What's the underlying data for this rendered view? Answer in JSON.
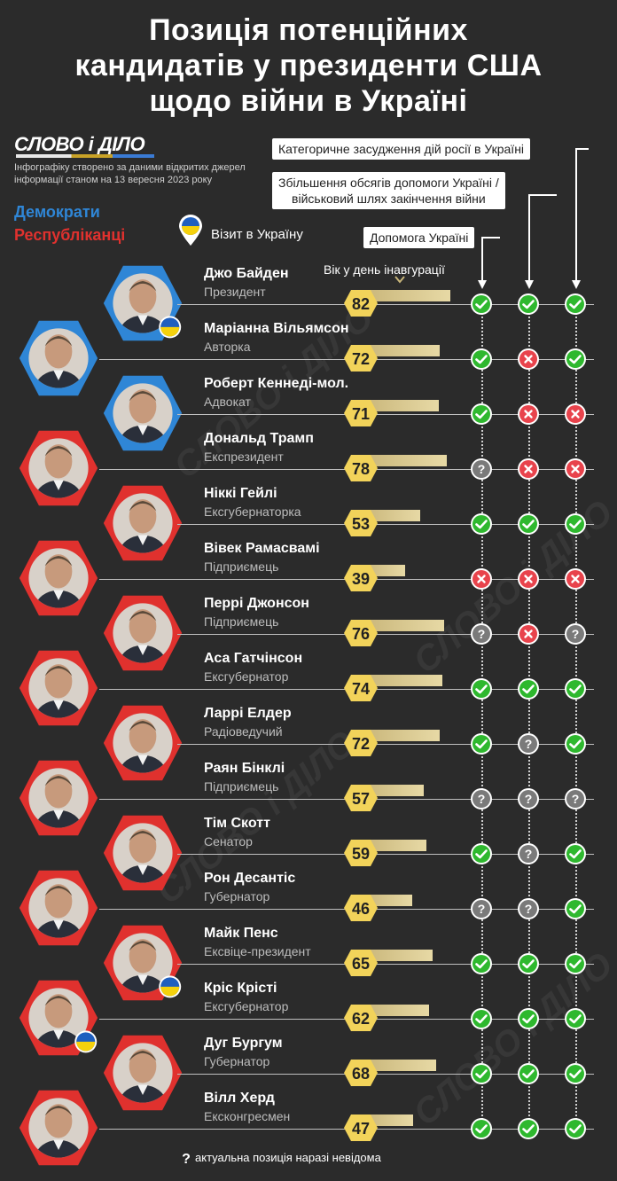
{
  "title_lines": [
    "Позиція потенційних",
    "кандидатів у президенти США",
    "щодо війни в Україні"
  ],
  "logo_text": "СЛОВО і ДІЛО",
  "source_lines": [
    "Інфографіку створено за даними відкритих джерел",
    "інформації станом на 13 вересня 2023 року"
  ],
  "legend": {
    "democrats": "Демократи",
    "republicans": "Республіканці",
    "visit": "Візит в Україну"
  },
  "colors": {
    "democrat": "#2f86d6",
    "republican": "#e0312e",
    "age_hex": "#f2d35a",
    "yes": "#2eb82e",
    "no": "#e8434c",
    "unknown": "#7a7a7a"
  },
  "categories": {
    "condemn": "Категоричне засудження дій росії в Україні",
    "increase_line1": "Збільшення обсягів допомоги Україні /",
    "increase_line2": "військовий шлях закінчення війни",
    "aid": "Допомога Україні"
  },
  "age_header": "Вік у день інавгурації",
  "footnote": "актуальна позиція наразі невідома",
  "chart_data": {
    "type": "table",
    "columns": [
      "Допомога Україні",
      "Збільшення обсягів допомоги Україні / військовий шлях закінчення війни",
      "Категоричне засудження дій росії в Україні"
    ],
    "rows": [
      {
        "name": "Джо Байден",
        "role": "Президент",
        "party": "democrat",
        "age": 82,
        "visit": true,
        "aid": "yes",
        "increase": "yes",
        "condemn": "yes"
      },
      {
        "name": "Маріанна Вільямсон",
        "role": "Авторка",
        "party": "democrat",
        "age": 72,
        "visit": false,
        "aid": "yes",
        "increase": "no",
        "condemn": "yes"
      },
      {
        "name": "Роберт Кеннеді-мол.",
        "role": "Адвокат",
        "party": "democrat",
        "age": 71,
        "visit": false,
        "aid": "yes",
        "increase": "no",
        "condemn": "no"
      },
      {
        "name": "Дональд Трамп",
        "role": "Експрезидент",
        "party": "republican",
        "age": 78,
        "visit": false,
        "aid": "unknown",
        "increase": "no",
        "condemn": "no"
      },
      {
        "name": "Ніккі Гейлі",
        "role": "Ексгубернаторка",
        "party": "republican",
        "age": 53,
        "visit": false,
        "aid": "yes",
        "increase": "yes",
        "condemn": "yes"
      },
      {
        "name": "Вівек Рамасвамі",
        "role": "Підприємець",
        "party": "republican",
        "age": 39,
        "visit": false,
        "aid": "no",
        "increase": "no",
        "condemn": "no"
      },
      {
        "name": "Перрі Джонсон",
        "role": "Підприємець",
        "party": "republican",
        "age": 76,
        "visit": false,
        "aid": "unknown",
        "increase": "no",
        "condemn": "unknown"
      },
      {
        "name": "Аса Гатчінсон",
        "role": "Ексгубернатор",
        "party": "republican",
        "age": 74,
        "visit": false,
        "aid": "yes",
        "increase": "yes",
        "condemn": "yes"
      },
      {
        "name": "Ларрі Елдер",
        "role": "Радіоведучий",
        "party": "republican",
        "age": 72,
        "visit": false,
        "aid": "yes",
        "increase": "unknown",
        "condemn": "yes"
      },
      {
        "name": "Раян Бінклі",
        "role": "Підприємець",
        "party": "republican",
        "age": 57,
        "visit": false,
        "aid": "unknown",
        "increase": "unknown",
        "condemn": "unknown"
      },
      {
        "name": "Тім Скотт",
        "role": "Сенатор",
        "party": "republican",
        "age": 59,
        "visit": false,
        "aid": "yes",
        "increase": "unknown",
        "condemn": "yes"
      },
      {
        "name": "Рон Десантіс",
        "role": "Губернатор",
        "party": "republican",
        "age": 46,
        "visit": false,
        "aid": "unknown",
        "increase": "unknown",
        "condemn": "yes"
      },
      {
        "name": "Майк Пенс",
        "role": "Ексвіце-президент",
        "party": "republican",
        "age": 65,
        "visit": true,
        "aid": "yes",
        "increase": "yes",
        "condemn": "yes"
      },
      {
        "name": "Кріс Крісті",
        "role": "Ексгубернатор",
        "party": "republican",
        "age": 62,
        "visit": true,
        "aid": "yes",
        "increase": "yes",
        "condemn": "yes"
      },
      {
        "name": "Дуг Бургум",
        "role": "Губернатор",
        "party": "republican",
        "age": 68,
        "visit": false,
        "aid": "yes",
        "increase": "yes",
        "condemn": "yes"
      },
      {
        "name": "Вілл Херд",
        "role": "Ексконгресмен",
        "party": "republican",
        "age": 47,
        "visit": false,
        "aid": "yes",
        "increase": "yes",
        "condemn": "yes"
      }
    ]
  }
}
